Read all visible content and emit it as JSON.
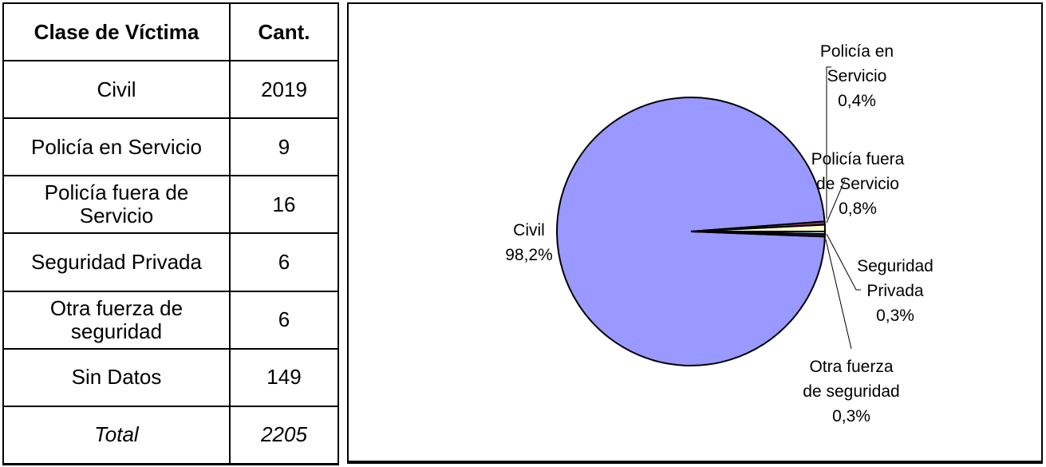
{
  "table": {
    "headers": [
      "Clase de Víctima",
      "Cant."
    ],
    "rows": [
      {
        "label": "Civil",
        "qty": "2019"
      },
      {
        "label": "Policía en Servicio",
        "qty": "9"
      },
      {
        "label": "Policía fuera de Servicio",
        "qty": "16"
      },
      {
        "label": "Seguridad Privada",
        "qty": "6"
      },
      {
        "label": "Otra fuerza de seguridad",
        "qty": "6"
      },
      {
        "label": "Sin Datos",
        "qty": "149"
      }
    ],
    "total": {
      "label": "Total",
      "qty": "2205"
    }
  },
  "chart_data": {
    "type": "pie",
    "slices": [
      {
        "name": "Civil",
        "value": 98.2,
        "label_lines": [
          "Civil",
          "98,2%"
        ],
        "color": "#9999ff"
      },
      {
        "name": "Policía en Servicio",
        "value": 0.4,
        "label_lines": [
          "Policía en",
          "Servicio",
          "0,4%"
        ],
        "color": "#993366"
      },
      {
        "name": "Policía fuera de Servicio",
        "value": 0.8,
        "label_lines": [
          "Policía fuera",
          "de Servicio",
          "0,8%"
        ],
        "color": "#ffffcc"
      },
      {
        "name": "Seguridad Privada",
        "value": 0.3,
        "label_lines": [
          "Seguridad",
          "Privada",
          "0,3%"
        ],
        "color": "#ccffff"
      },
      {
        "name": "Otra fuerza de seguridad",
        "value": 0.3,
        "label_lines": [
          "Otra fuerza",
          "de seguridad",
          "0,3%"
        ],
        "color": "#660066"
      }
    ],
    "legend": "none"
  }
}
